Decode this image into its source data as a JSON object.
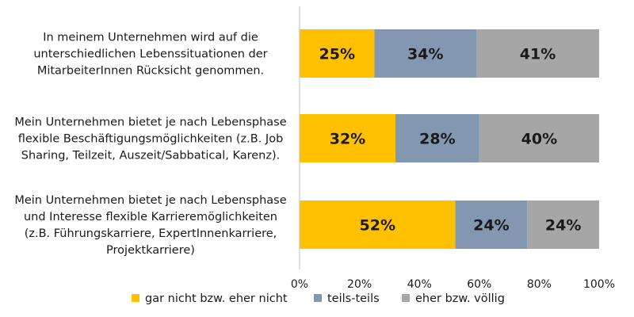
{
  "chart_data": {
    "type": "bar",
    "orientation": "horizontal",
    "stacked": true,
    "categories": [
      [
        "In meinem Unternehmen wird auf die",
        "unterschiedlichen Lebenssituationen der",
        "MitarbeiterInnen Rücksicht genommen."
      ],
      [
        "Mein Unternehmen bietet je nach Lebensphase",
        "flexible Beschäftigungsmöglichkeiten (z.B. Job",
        "Sharing, Teilzeit, Auszeit/Sabbatical, Karenz)."
      ],
      [
        "Mein Unternehmen bietet je nach Lebensphase",
        "und Interesse flexible Karrieremöglichkeiten",
        "(z.B. Führungskarriere, ExpertInnenkarriere,",
        "Projektkarriere)"
      ]
    ],
    "series": [
      {
        "name": "gar nicht bzw. eher nicht",
        "color": "#FFC000",
        "values": [
          25,
          32,
          52
        ],
        "labels": [
          "25%",
          "32%",
          "52%"
        ]
      },
      {
        "name": "teils-teils",
        "color": "#8497B0",
        "values": [
          34,
          28,
          24
        ],
        "labels": [
          "34%",
          "28%",
          "24%"
        ]
      },
      {
        "name": "eher bzw. völlig",
        "color": "#A6A6A6",
        "values": [
          41,
          40,
          24
        ],
        "labels": [
          "41%",
          "40%",
          "24%"
        ]
      }
    ],
    "xlim": [
      0,
      100
    ],
    "xticks": [
      "0%",
      "20%",
      "40%",
      "60%",
      "80%",
      "100%"
    ],
    "grid": false,
    "legend_position": "bottom"
  }
}
